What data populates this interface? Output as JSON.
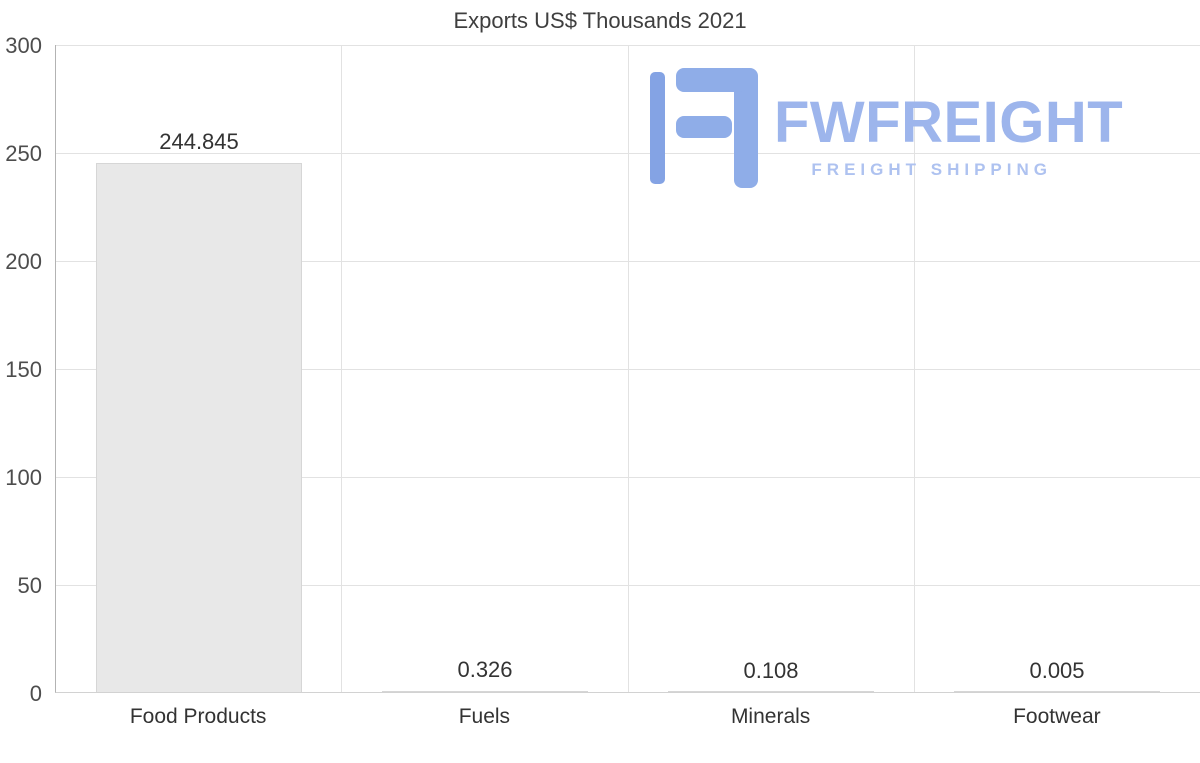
{
  "chart_data": {
    "type": "bar",
    "title": "Exports US$ Thousands 2021",
    "categories": [
      "Food Products",
      "Fuels",
      "Minerals",
      "Footwear"
    ],
    "values": [
      244.845,
      0.326,
      0.108,
      0.005
    ],
    "value_labels": [
      "244.845",
      "0.326",
      "0.108",
      "0.005"
    ],
    "xlabel": "",
    "ylabel": "",
    "ylim": [
      0,
      300
    ],
    "yticks": [
      0,
      50,
      100,
      150,
      200,
      250,
      300
    ],
    "grid": true,
    "legend": "none",
    "bar_color": "#e8e8e8",
    "bar_border_color": "#d6d6d6"
  },
  "watermark": {
    "brand": "FWFREIGHT",
    "tagline": "FREIGHT SHIPPING",
    "color": "#9db5ec"
  }
}
